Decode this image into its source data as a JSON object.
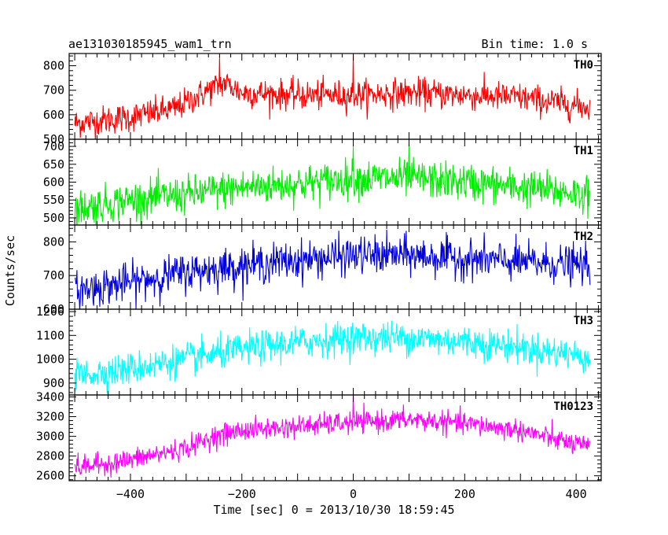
{
  "header": {
    "title": "ae131030185945_wam1_trn",
    "bin_time": "Bin time: 1.0 s"
  },
  "colors": {
    "TH0": "#ff0000",
    "TH1": "#00ee00",
    "TH2": "#0000dd",
    "TH3": "#00ffff",
    "TH0123": "#ff00ff"
  },
  "chart_data": {
    "type": "line",
    "xlabel": "Time [sec] 0 = 2013/10/30 18:59:45",
    "ylabel": "Counts/sec",
    "xlim": [
      -510,
      445
    ],
    "x_ticks": [
      -400,
      -200,
      0,
      200,
      400
    ],
    "x_tick_labels": [
      "−400",
      "−200",
      "0",
      "200",
      "400"
    ],
    "grid": false,
    "panels": [
      {
        "name": "TH0",
        "ylim": [
          500,
          850
        ],
        "y_ticks": [
          500,
          600,
          700,
          800
        ],
        "y_tick_labels": [
          "500",
          "600",
          "700",
          "800"
        ],
        "trend": {
          "x": [
            -500,
            -400,
            -320,
            -260,
            -230,
            -200,
            -100,
            0,
            100,
            200,
            300,
            425
          ],
          "y": [
            565,
            590,
            625,
            700,
            730,
            690,
            680,
            680,
            690,
            680,
            670,
            630
          ]
        },
        "noise": 30,
        "spikes": [
          [
            0,
            845
          ],
          [
            -240,
            835
          ]
        ]
      },
      {
        "name": "TH1",
        "ylim": [
          480,
          720
        ],
        "y_ticks": [
          500,
          550,
          600,
          650,
          700
        ],
        "y_tick_labels": [
          "500",
          "550",
          "600",
          "650",
          "700"
        ],
        "trend": {
          "x": [
            -500,
            -400,
            -300,
            -200,
            -100,
            0,
            100,
            200,
            300,
            425
          ],
          "y": [
            525,
            550,
            565,
            585,
            595,
            610,
            610,
            600,
            585,
            565
          ]
        },
        "noise": 26,
        "spikes": [
          [
            0,
            700
          ],
          [
            100,
            705
          ]
        ]
      },
      {
        "name": "TH2",
        "ylim": [
          600,
          850
        ],
        "y_ticks": [
          600,
          700,
          800
        ],
        "y_tick_labels": [
          "600",
          "700",
          "800"
        ],
        "trend": {
          "x": [
            -500,
            -400,
            -300,
            -200,
            -100,
            0,
            100,
            200,
            300,
            425
          ],
          "y": [
            655,
            680,
            710,
            730,
            745,
            760,
            760,
            750,
            740,
            730
          ]
        },
        "noise": 28,
        "spikes": []
      },
      {
        "name": "TH3",
        "ylim": [
          850,
          1210
        ],
        "y_ticks": [
          900,
          1000,
          1100,
          1200
        ],
        "y_tick_labels": [
          "900",
          "1000",
          "1100",
          "1200"
        ],
        "trend": {
          "x": [
            -500,
            -400,
            -300,
            -200,
            -100,
            0,
            100,
            200,
            300,
            425
          ],
          "y": [
            930,
            960,
            1000,
            1040,
            1070,
            1090,
            1090,
            1075,
            1050,
            1010
          ]
        },
        "noise": 34,
        "spikes": []
      },
      {
        "name": "TH0123",
        "ylim": [
          2550,
          3420
        ],
        "y_ticks": [
          2600,
          2800,
          3000,
          3200,
          3400
        ],
        "y_tick_labels": [
          "2600",
          "2800",
          "3000",
          "3200",
          "3400"
        ],
        "trend": {
          "x": [
            -500,
            -400,
            -300,
            -250,
            -200,
            -100,
            0,
            100,
            200,
            300,
            425
          ],
          "y": [
            2680,
            2760,
            2880,
            3000,
            3060,
            3100,
            3140,
            3170,
            3130,
            3060,
            2880
          ]
        },
        "noise": 55,
        "spikes": [
          [
            0,
            3420
          ]
        ]
      }
    ]
  }
}
